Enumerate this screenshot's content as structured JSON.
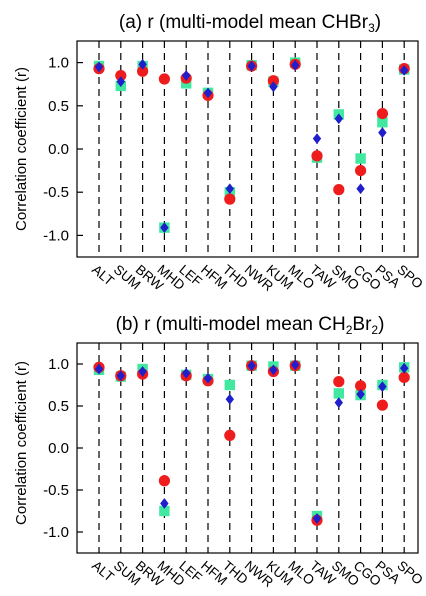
{
  "colors": {
    "model_red": "#ee1c1c",
    "model_blue": "#1f1fcc",
    "model_green": "#40e8a0",
    "frame": "#000000",
    "station_line": "#000000"
  },
  "chart_data": [
    {
      "type": "scatter",
      "title_prefix": "(a) r (multi-model mean CHBr",
      "title_sub": "3",
      "title_suffix": ")",
      "ylabel": "Correlation coefficient (r)",
      "xlabel": "",
      "ylim": [
        -1.25,
        1.25
      ],
      "yticks": [
        -1.0,
        -0.5,
        0.0,
        0.5,
        1.0
      ],
      "ytick_labels": [
        "-1.0",
        "-0.5",
        "0.0",
        "0.5",
        "1.0"
      ],
      "categories": [
        "ALT",
        "SUM",
        "BRW",
        "MHD",
        "LEF",
        "HFM",
        "THD",
        "NWR",
        "KUM",
        "MLO",
        "TAW",
        "SMO",
        "CGO",
        "PSA",
        "SPO"
      ],
      "grid": false,
      "legend": "none",
      "series": [
        {
          "marker": "circle",
          "color": "#ee1c1c",
          "values": [
            0.93,
            0.85,
            0.9,
            0.81,
            0.82,
            0.62,
            -0.58,
            0.96,
            0.79,
            0.98,
            -0.08,
            -0.47,
            -0.25,
            0.41,
            0.93
          ]
        },
        {
          "marker": "diamond",
          "color": "#1f1fcc",
          "values": [
            0.95,
            0.78,
            0.98,
            -0.91,
            0.85,
            0.65,
            -0.46,
            0.96,
            0.72,
            0.97,
            0.12,
            0.35,
            -0.46,
            0.19,
            0.91
          ]
        },
        {
          "marker": "square",
          "color": "#40e8a0",
          "values": [
            0.96,
            0.73,
            0.96,
            -0.91,
            0.76,
            0.65,
            -0.5,
            0.97,
            0.78,
            1.0,
            -0.1,
            0.4,
            -0.11,
            0.31,
            0.92
          ]
        }
      ]
    },
    {
      "type": "scatter",
      "title_prefix": "(b) r (multi-model mean CH",
      "title_sub": "2",
      "title_mid": "Br",
      "title_sub2": "2",
      "title_suffix": ")",
      "ylabel": "Correlation coefficient (r)",
      "xlabel": "",
      "ylim": [
        -1.25,
        1.25
      ],
      "yticks": [
        -1.0,
        -0.5,
        0.0,
        0.5,
        1.0
      ],
      "ytick_labels": [
        "-1.0",
        "-0.5",
        "0.0",
        "0.5",
        "1.0"
      ],
      "categories": [
        "ALT",
        "SUM",
        "BRW",
        "MHD",
        "LEF",
        "HFM",
        "THD",
        "NWR",
        "KUM",
        "MLO",
        "TAW",
        "SMO",
        "CGO",
        "PSA",
        "SPO"
      ],
      "grid": false,
      "legend": "none",
      "series": [
        {
          "marker": "circle",
          "color": "#ee1c1c",
          "values": [
            0.96,
            0.86,
            0.88,
            -0.39,
            0.86,
            0.8,
            0.15,
            0.98,
            0.91,
            0.98,
            -0.86,
            0.79,
            0.74,
            0.51,
            0.84
          ]
        },
        {
          "marker": "diamond",
          "color": "#1f1fcc",
          "values": [
            0.94,
            0.86,
            0.91,
            -0.66,
            0.89,
            0.83,
            0.58,
            0.98,
            0.93,
            0.99,
            -0.84,
            0.54,
            0.64,
            0.73,
            0.95
          ]
        },
        {
          "marker": "square",
          "color": "#40e8a0",
          "values": [
            0.93,
            0.85,
            0.94,
            -0.75,
            0.87,
            0.82,
            0.75,
            0.98,
            0.97,
            0.98,
            -0.81,
            0.65,
            0.63,
            0.75,
            0.96
          ]
        }
      ]
    }
  ]
}
